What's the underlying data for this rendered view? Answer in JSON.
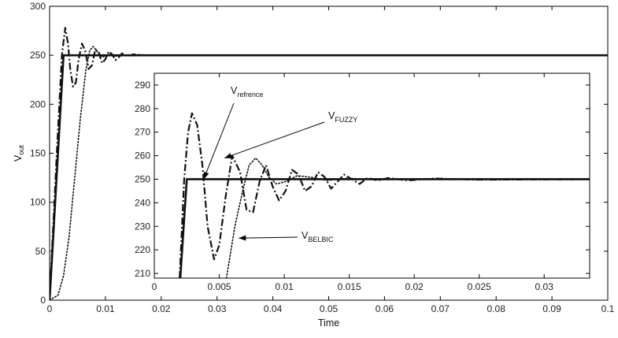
{
  "chart_data": [
    {
      "id": "main",
      "type": "line",
      "xlabel": "Time",
      "ylabel_main": "V",
      "ylabel_sub": "out",
      "xlim": [
        0,
        0.1
      ],
      "ylim": [
        0,
        300
      ],
      "x_ticks": [
        0,
        0.01,
        0.02,
        0.03,
        0.04,
        0.05,
        0.06,
        0.07,
        0.08,
        0.09,
        0.1
      ],
      "x_tick_labels": [
        "0",
        "0.01",
        "0.02",
        "0.03",
        "0.04",
        "0.05",
        "0.06",
        "0.07",
        "0.08",
        "0.09",
        "0.1"
      ],
      "y_ticks": [
        0,
        50,
        100,
        150,
        200,
        250,
        300
      ],
      "y_tick_labels": [
        "0",
        "50",
        "100",
        "150",
        "200",
        "250",
        "300"
      ],
      "series": [
        {
          "key": "reference",
          "style": "solid",
          "x": [
            0,
            0.0025,
            0.1
          ],
          "y": [
            0,
            250,
            250
          ]
        },
        {
          "key": "fuzzy",
          "style": "dashdot",
          "x": [
            0,
            0.0012,
            0.0022,
            0.0028,
            0.0033,
            0.0037,
            0.0042,
            0.0047,
            0.0052,
            0.0058,
            0.0064,
            0.007,
            0.0076,
            0.0082,
            0.0088,
            0.0094,
            0.01,
            0.0106,
            0.0112,
            0.0118,
            0.0124,
            0.013,
            0.014,
            0.015,
            0.017,
            0.02,
            0.1
          ],
          "y": [
            0,
            140,
            250,
            278,
            262,
            236,
            218,
            222,
            246,
            262,
            254,
            236,
            240,
            256,
            253,
            242,
            246,
            254,
            251,
            245,
            248,
            252,
            249,
            251,
            250,
            250,
            250
          ]
        },
        {
          "key": "belbic",
          "style": "dotted",
          "x": [
            0,
            0.0015,
            0.0025,
            0.0035,
            0.0045,
            0.0055,
            0.0065,
            0.0072,
            0.0078,
            0.0085,
            0.0095,
            0.0105,
            0.012,
            0.014,
            0.1
          ],
          "y": [
            0,
            5,
            25,
            65,
            125,
            185,
            235,
            255,
            259,
            254,
            248,
            251,
            249,
            250,
            250
          ]
        }
      ]
    },
    {
      "id": "inset",
      "type": "line",
      "xlim": [
        0,
        0.0335
      ],
      "ylim": [
        208,
        295
      ],
      "x_ticks": [
        0,
        0.005,
        0.01,
        0.015,
        0.02,
        0.025,
        0.03
      ],
      "x_tick_labels": [
        "0",
        "0.005",
        "0.01",
        "0.015",
        "0.02",
        "0.025",
        "0.03"
      ],
      "y_ticks": [
        210,
        220,
        230,
        240,
        250,
        260,
        270,
        280,
        290
      ],
      "y_tick_labels": [
        "210",
        "220",
        "230",
        "240",
        "250",
        "260",
        "270",
        "280",
        "290"
      ],
      "series": [
        {
          "key": "reference",
          "style": "solid",
          "x": [
            0.002,
            0.0025,
            0.0335
          ],
          "y": [
            208,
            250,
            250
          ]
        },
        {
          "key": "fuzzy",
          "style": "dashdot",
          "x": [
            0.00195,
            0.0023,
            0.0026,
            0.0029,
            0.0033,
            0.0037,
            0.0041,
            0.0046,
            0.005,
            0.0055,
            0.006,
            0.0066,
            0.0071,
            0.0076,
            0.0081,
            0.0086,
            0.0091,
            0.0096,
            0.0101,
            0.0106,
            0.0111,
            0.0116,
            0.0121,
            0.0126,
            0.0131,
            0.0136,
            0.0141,
            0.0146,
            0.0152,
            0.0158,
            0.0164,
            0.0172,
            0.018,
            0.0195,
            0.0215,
            0.025,
            0.0335
          ],
          "y": [
            208,
            250,
            270,
            278,
            273,
            256,
            230,
            216,
            222,
            243,
            260,
            253,
            237,
            236,
            249,
            256,
            247,
            241,
            245,
            254,
            252,
            245,
            247,
            253,
            251,
            246,
            249,
            252,
            250,
            248,
            250.5,
            249.5,
            250.5,
            249.5,
            250.3,
            249.8,
            250
          ]
        },
        {
          "key": "belbic",
          "style": "dotted",
          "x": [
            0.00555,
            0.0062,
            0.0068,
            0.0073,
            0.0078,
            0.0083,
            0.0088,
            0.0094,
            0.0101,
            0.011,
            0.0121,
            0.0133,
            0.0148,
            0.017,
            0.02,
            0.0335
          ],
          "y": [
            208,
            230,
            245,
            256,
            259,
            256,
            251,
            248,
            249,
            251.5,
            250.8,
            249.5,
            250.4,
            249.8,
            250,
            250
          ]
        }
      ],
      "annotations": [
        {
          "key": "reference",
          "text": "V",
          "sub": "refrence",
          "point_x": 0.0038,
          "point_y": 250
        },
        {
          "key": "fuzzy",
          "text": "V",
          "sub": "FUZZY",
          "point_x": 0.0054,
          "point_y": 259
        },
        {
          "key": "belbic",
          "text": "V",
          "sub": "BELBIC",
          "point_x": 0.0065,
          "point_y": 225
        }
      ]
    }
  ]
}
